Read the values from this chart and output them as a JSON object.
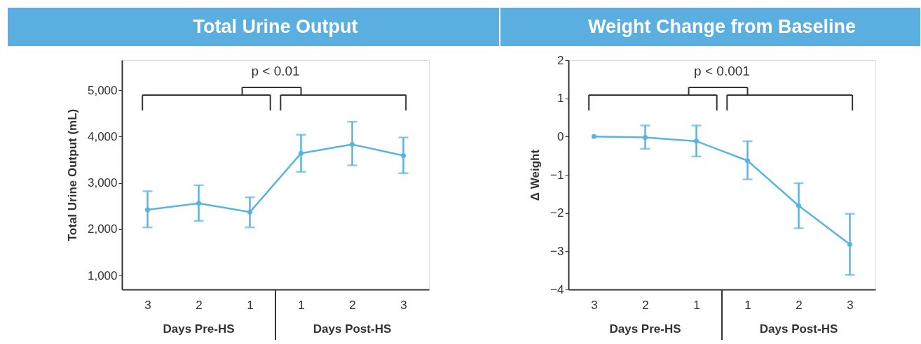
{
  "chart_data": [
    {
      "type": "line",
      "title": "Total Urine Output",
      "ylabel": "Total Urine Output (mL)",
      "categories": [
        "3",
        "2",
        "1",
        "1",
        "2",
        "3"
      ],
      "series": [
        {
          "color": "#5ab4e0",
          "values": [
            2420,
            2560,
            2370,
            3640,
            3830,
            3590
          ],
          "errors": [
            [
              2040,
              2820
            ],
            [
              2180,
              2950
            ],
            [
              2040,
              2690
            ],
            [
              3240,
              4040
            ],
            [
              3380,
              4320
            ],
            [
              3210,
              3980
            ]
          ]
        }
      ],
      "ylim": [
        700,
        5650
      ],
      "yticks": [
        {
          "value": 1000,
          "label": "1,000"
        },
        {
          "value": 2000,
          "label": "2,000"
        },
        {
          "value": 3000,
          "label": "3,000"
        },
        {
          "value": 4000,
          "label": "4,000"
        },
        {
          "value": 5000,
          "label": "5,000"
        }
      ],
      "marker": "circle",
      "grid": false,
      "annotations": [
        "p < 0.01",
        "Days Pre-HS",
        "Days Post-HS"
      ]
    },
    {
      "type": "line",
      "title": "Weight Change from Baseline",
      "ylabel": "Δ Weight",
      "categories": [
        "3",
        "2",
        "1",
        "1",
        "2",
        "3"
      ],
      "series": [
        {
          "color": "#5ab4e0",
          "values": [
            0,
            -0.02,
            -0.12,
            -0.63,
            -1.81,
            -2.82
          ],
          "errors": [
            null,
            [
              -0.32,
              0.29
            ],
            [
              -0.52,
              0.29
            ],
            [
              -1.12,
              -0.12
            ],
            [
              -2.4,
              -1.22
            ],
            [
              -3.62,
              -2.02
            ]
          ]
        }
      ],
      "ylim": [
        -4,
        2
      ],
      "yticks": [
        -4,
        -3,
        -2,
        -1,
        0,
        1,
        2
      ],
      "marker": "circle",
      "grid": false,
      "annotations": [
        "p < 0.001",
        "Days Pre-HS",
        "Days Post-HS"
      ]
    }
  ]
}
